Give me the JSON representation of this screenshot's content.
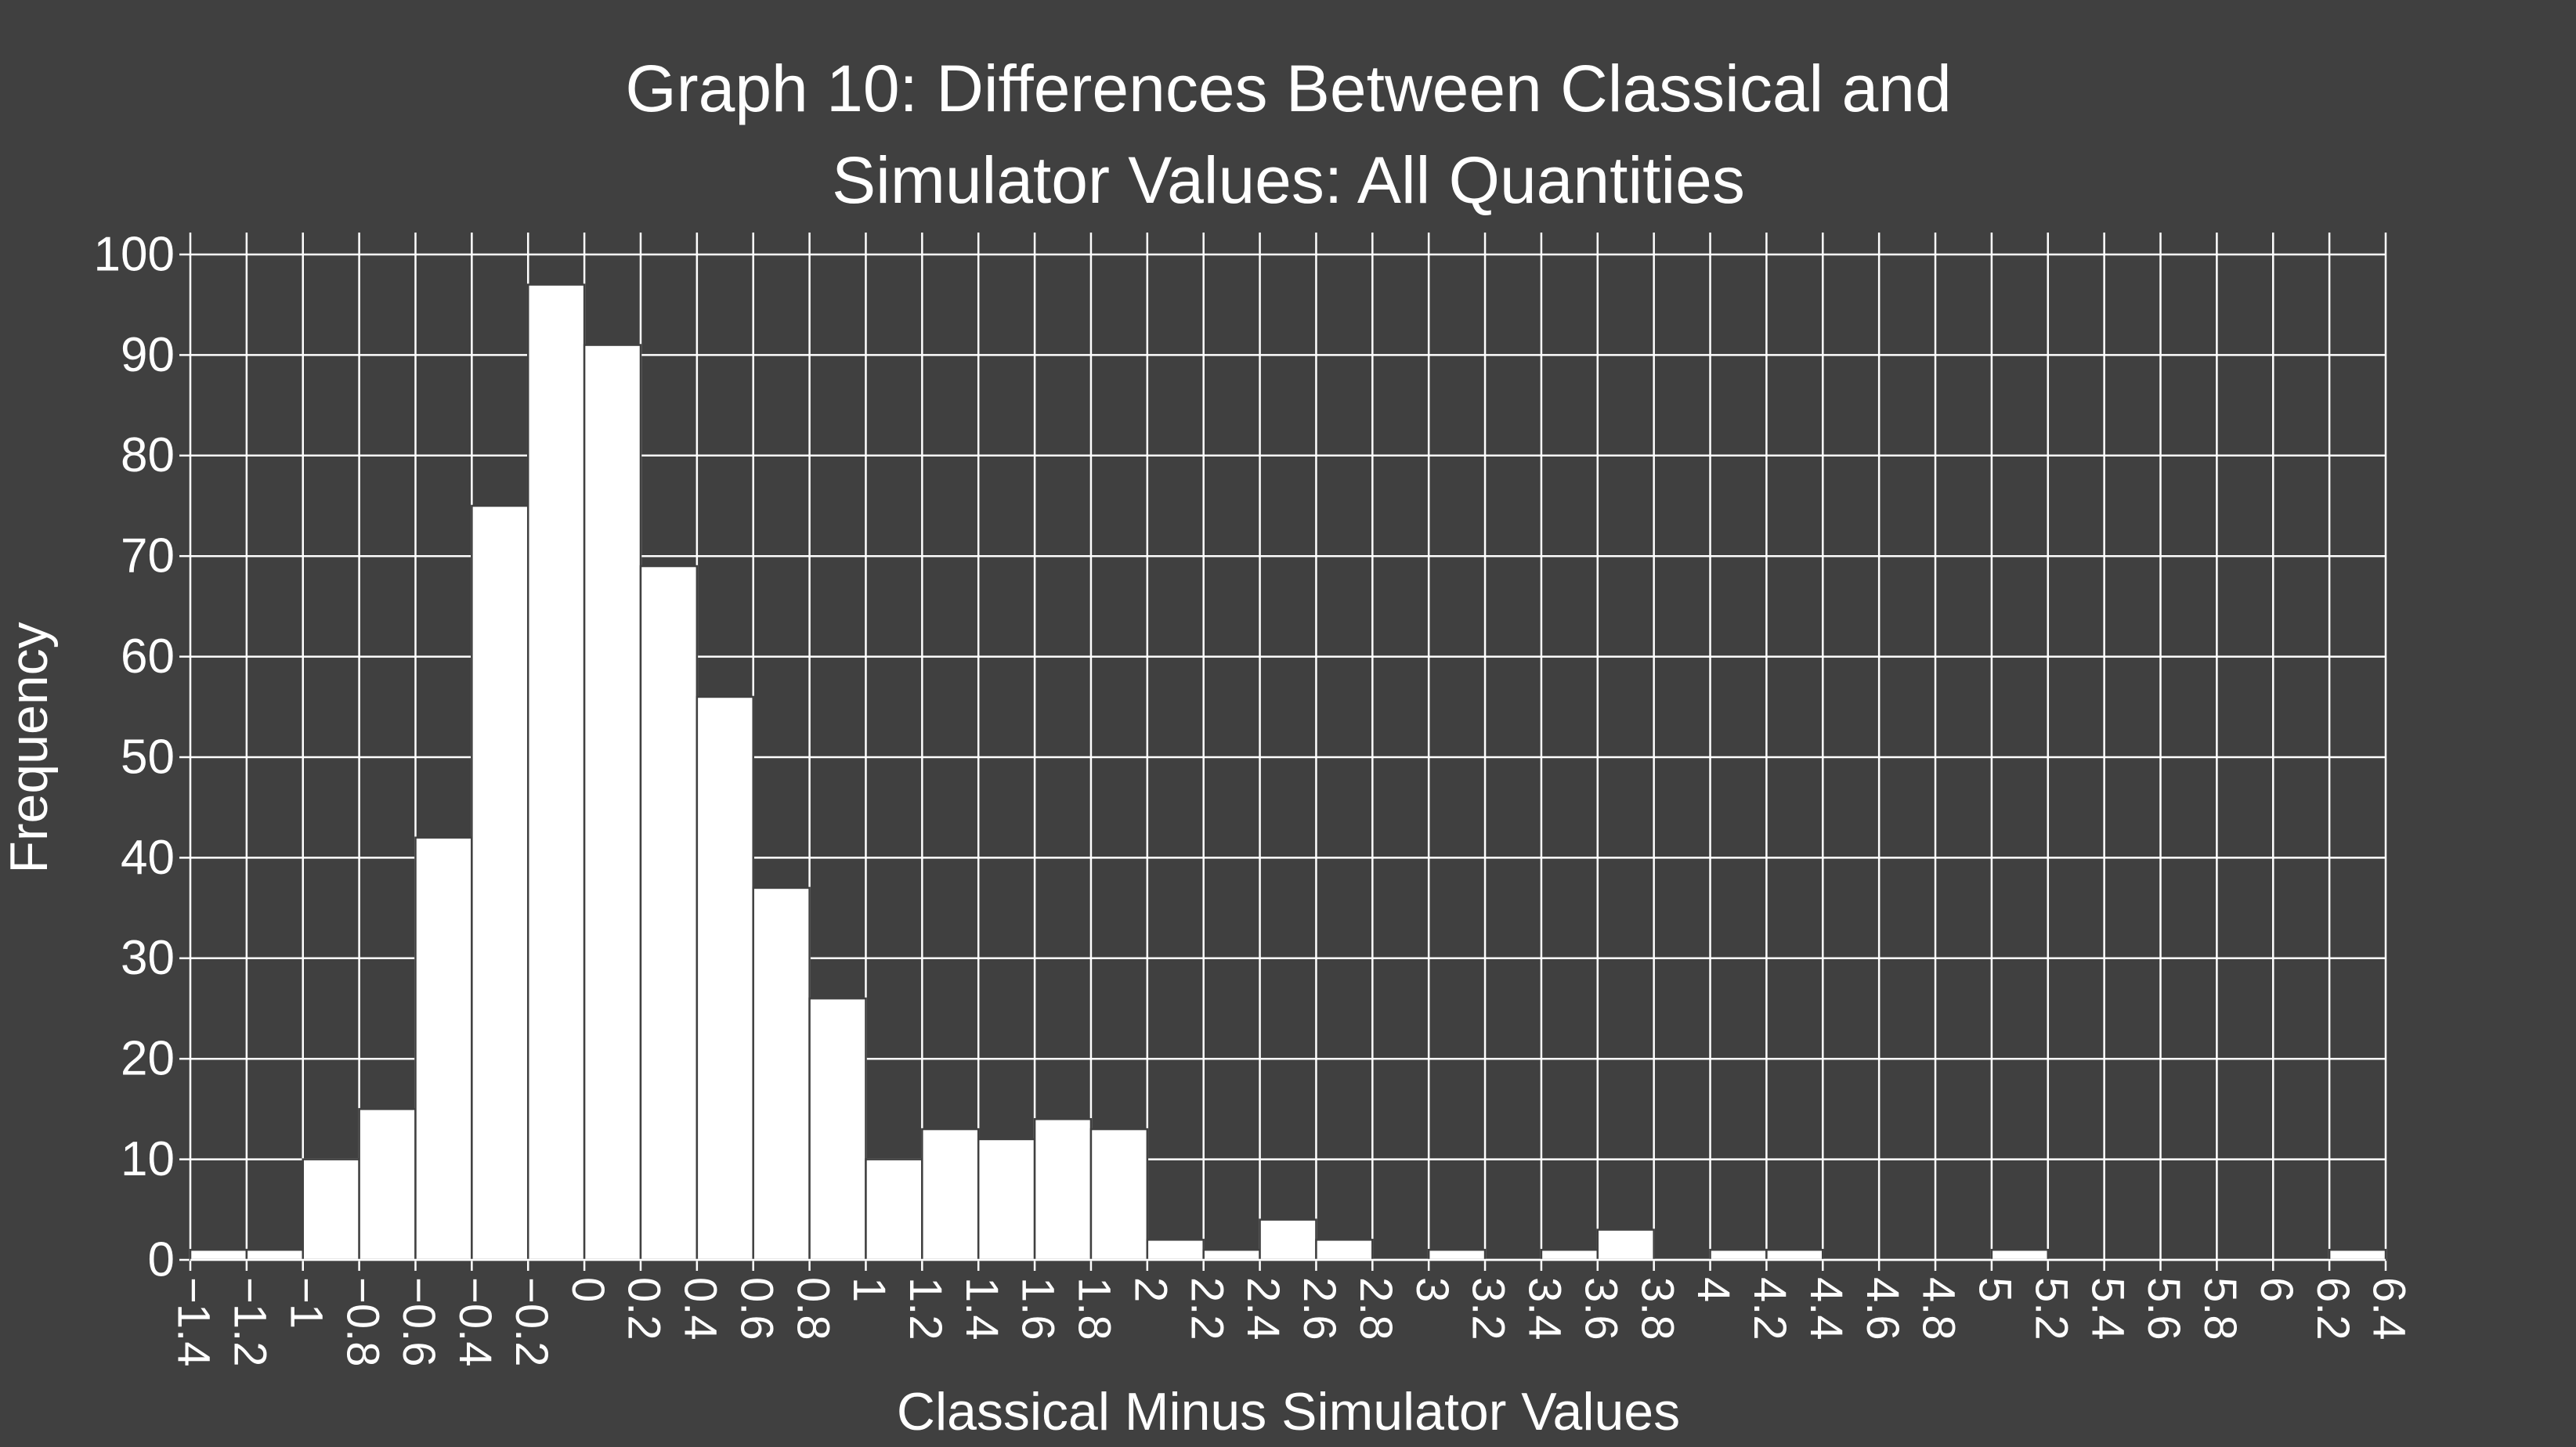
{
  "chart_data": {
    "type": "histogram",
    "title": [
      "Graph 10: Differences Between Classical and",
      "Simulator Values: All Quantities"
    ],
    "xlabel": "Classical Minus Simulator Values",
    "ylabel": "Frequency",
    "bins": [
      -1.4,
      -1.2,
      -1,
      -0.8,
      -0.6,
      -0.4,
      -0.2,
      0,
      0.2,
      0.4,
      0.6,
      0.8,
      1,
      1.2,
      1.4,
      1.6,
      1.8,
      2,
      2.2,
      2.4,
      2.6,
      2.8,
      3,
      3.2,
      3.4,
      3.6,
      3.8,
      4,
      4.2,
      4.4,
      4.6,
      4.8,
      5,
      5.2,
      5.4,
      5.6,
      5.8,
      6,
      6.2,
      6.4
    ],
    "values": [
      1,
      1,
      10,
      15,
      42,
      75,
      97,
      91,
      69,
      56,
      37,
      26,
      10,
      13,
      12,
      14,
      13,
      2,
      1,
      4,
      2,
      0,
      1,
      0,
      1,
      3,
      0,
      1,
      1,
      0,
      0,
      0,
      1,
      0,
      0,
      0,
      0,
      0,
      1
    ],
    "color": "#ffffff",
    "xlim": [
      -1.4,
      6.4
    ],
    "xticks": [
      {
        "value": -1.4,
        "label": "−1.4"
      },
      {
        "value": -1.2,
        "label": "−1.2"
      },
      {
        "value": -1,
        "label": "−1"
      },
      {
        "value": -0.8,
        "label": "−0.8"
      },
      {
        "value": -0.6,
        "label": "−0.6"
      },
      {
        "value": -0.4,
        "label": "−0.4"
      },
      {
        "value": -0.2,
        "label": "−0.2"
      },
      0,
      0.2,
      0.4,
      0.6,
      0.8,
      1,
      1.2,
      1.4,
      1.6,
      1.8,
      2,
      2.2,
      2.4,
      2.6,
      2.8,
      3,
      3.2,
      3.4,
      3.6,
      3.8,
      4,
      4.2,
      4.4,
      4.6,
      4.8,
      5,
      5.2,
      5.4,
      5.6,
      5.8,
      6,
      6.2,
      6.4
    ],
    "ylim": [
      0,
      100
    ],
    "yticks": [
      0,
      10,
      20,
      30,
      40,
      50,
      60,
      70,
      80,
      90,
      100
    ],
    "grid": true
  }
}
